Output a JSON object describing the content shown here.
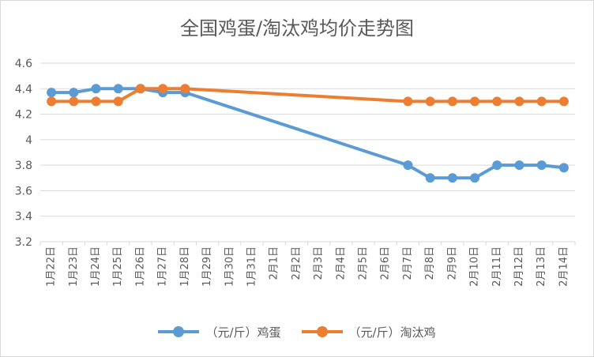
{
  "chart_data": {
    "type": "line",
    "title": "全国鸡蛋/淘汰鸡均价走势图",
    "categories": [
      "1月22日",
      "1月23日",
      "1月24日",
      "1月25日",
      "1月26日",
      "1月27日",
      "1月28日",
      "1月29日",
      "1月30日",
      "1月31日",
      "2月1日",
      "2月2日",
      "2月3日",
      "2月4日",
      "2月5日",
      "2月6日",
      "2月7日",
      "2月8日",
      "2月9日",
      "2月10日",
      "2月11日",
      "2月12日",
      "2月13日",
      "2月14日"
    ],
    "ylim": [
      3.2,
      4.6
    ],
    "yticks": [
      "3.2",
      "3.4",
      "3.6",
      "3.8",
      "4",
      "4.2",
      "4.4",
      "4.6"
    ],
    "grid": true,
    "legend_position": "bottom",
    "series": [
      {
        "name": "（元/斤）鸡蛋",
        "color": "#5B9BD5",
        "values": [
          4.37,
          4.37,
          4.4,
          4.4,
          4.4,
          4.37,
          4.37,
          null,
          null,
          null,
          null,
          null,
          null,
          null,
          null,
          null,
          3.8,
          3.7,
          3.7,
          3.7,
          3.8,
          3.8,
          3.8,
          3.78
        ]
      },
      {
        "name": "（元/斤）淘汰鸡",
        "color": "#ED7D31",
        "values": [
          4.3,
          4.3,
          4.3,
          4.3,
          4.4,
          4.4,
          4.4,
          null,
          null,
          null,
          null,
          null,
          null,
          null,
          null,
          null,
          4.3,
          4.3,
          4.3,
          4.3,
          4.3,
          4.3,
          4.3,
          4.3
        ]
      }
    ]
  }
}
